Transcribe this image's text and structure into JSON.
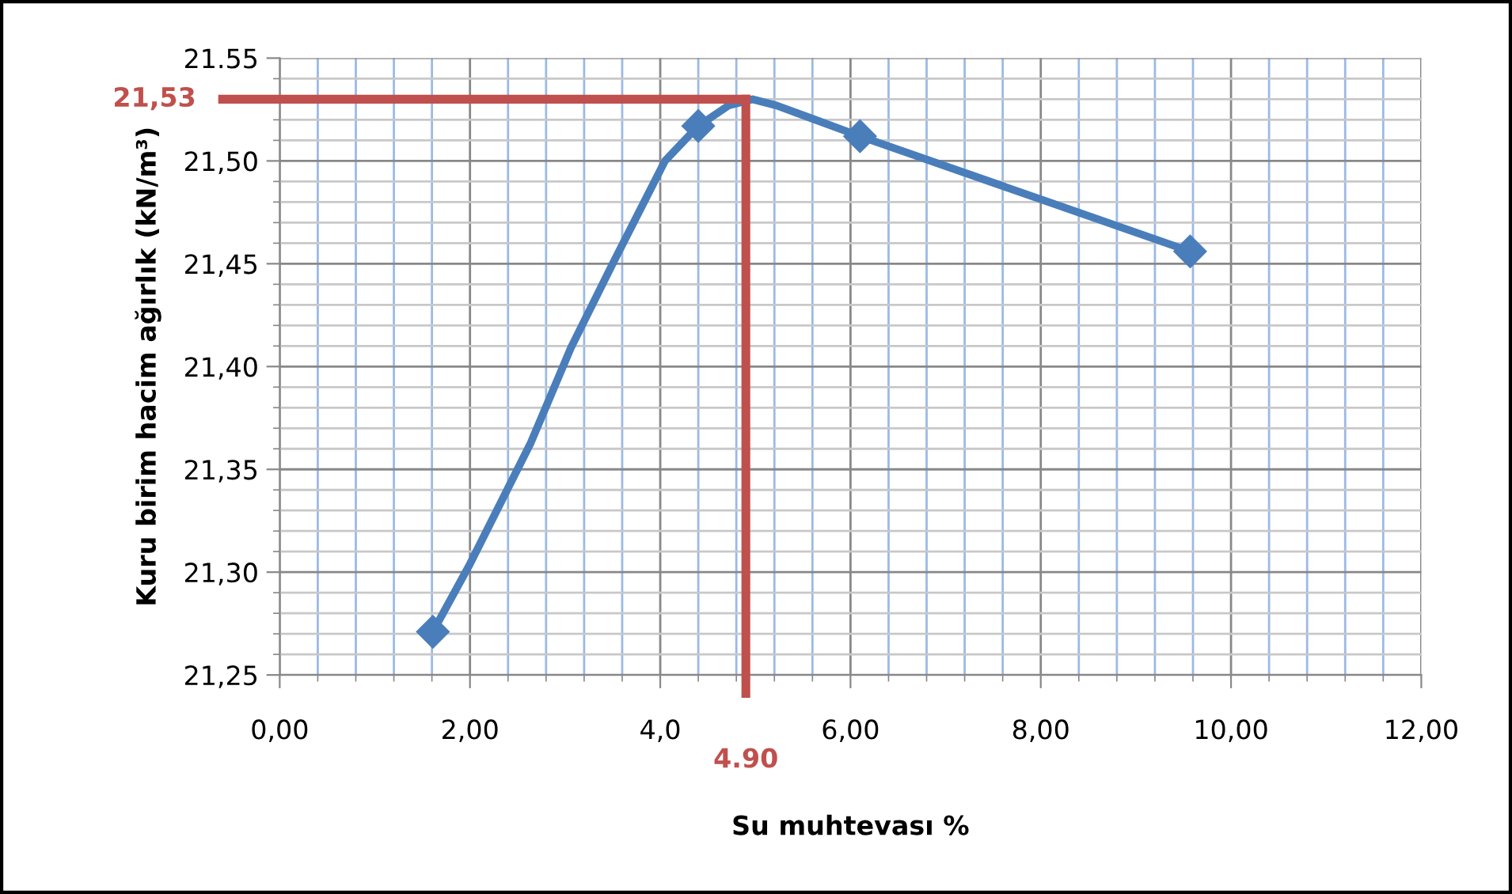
{
  "chart_data": {
    "type": "line",
    "xlabel": "Su muhtevası %",
    "ylabel": "Kuru birim hacim ağırlık (kN/m³)",
    "series": [
      {
        "color": "#4a7ebb",
        "x": [
          1.61,
          2.0,
          2.64,
          3.06,
          3.5,
          4.05,
          4.4,
          4.72,
          4.97,
          5.22,
          5.63,
          6.1,
          9.57
        ],
        "values": [
          21.271,
          21.304,
          21.363,
          21.409,
          21.45,
          21.5,
          21.517,
          21.527,
          21.53,
          21.527,
          21.52,
          21.512,
          21.456
        ],
        "marker": "none"
      },
      {
        "type": "scatter",
        "color": "#4a7ebb",
        "x": [
          1.61,
          4.4,
          6.1,
          9.57
        ],
        "values": [
          21.271,
          21.517,
          21.512,
          21.456
        ],
        "marker": "diamond"
      }
    ],
    "line_style": "solid",
    "xlim": [
      0,
      12
    ],
    "xticks": [
      {
        "value": 0,
        "label": "0,00"
      },
      {
        "value": 0.4,
        "label": null
      },
      {
        "value": 0.8,
        "label": null
      },
      {
        "value": 1.2,
        "label": null
      },
      {
        "value": 1.6,
        "label": null
      },
      {
        "value": 2,
        "label": "2,00"
      },
      {
        "value": 2.4,
        "label": null
      },
      {
        "value": 2.8,
        "label": null
      },
      {
        "value": 3.2,
        "label": null
      },
      {
        "value": 3.6,
        "label": null
      },
      {
        "value": 4,
        "label": "4,0"
      },
      {
        "value": 4.4,
        "label": null
      },
      {
        "value": 4.8,
        "label": null
      },
      {
        "value": 5.2,
        "label": null
      },
      {
        "value": 5.6,
        "label": null
      },
      {
        "value": 6,
        "label": "6,00"
      },
      {
        "value": 6.4,
        "label": null
      },
      {
        "value": 6.8,
        "label": null
      },
      {
        "value": 7.2,
        "label": null
      },
      {
        "value": 7.6,
        "label": null
      },
      {
        "value": 8,
        "label": "8,00"
      },
      {
        "value": 8.4,
        "label": null
      },
      {
        "value": 8.8,
        "label": null
      },
      {
        "value": 9.2,
        "label": null
      },
      {
        "value": 9.6,
        "label": null
      },
      {
        "value": 10,
        "label": "10,00"
      },
      {
        "value": 10.4,
        "label": null
      },
      {
        "value": 10.8,
        "label": null
      },
      {
        "value": 11.2,
        "label": null
      },
      {
        "value": 11.6,
        "label": null
      },
      {
        "value": 12,
        "label": "12,00"
      }
    ],
    "ylim": [
      21.25,
      21.55
    ],
    "yticks": [
      {
        "value": 21.25,
        "label": "21,25"
      },
      {
        "value": 21.26,
        "label": null
      },
      {
        "value": 21.27,
        "label": null
      },
      {
        "value": 21.28,
        "label": null
      },
      {
        "value": 21.29,
        "label": null
      },
      {
        "value": 21.3,
        "label": "21,30"
      },
      {
        "value": 21.31,
        "label": null
      },
      {
        "value": 21.32,
        "label": null
      },
      {
        "value": 21.33,
        "label": null
      },
      {
        "value": 21.34,
        "label": null
      },
      {
        "value": 21.35,
        "label": "21,35"
      },
      {
        "value": 21.36,
        "label": null
      },
      {
        "value": 21.37,
        "label": null
      },
      {
        "value": 21.38,
        "label": null
      },
      {
        "value": 21.39,
        "label": null
      },
      {
        "value": 21.4,
        "label": "21,40"
      },
      {
        "value": 21.41,
        "label": null
      },
      {
        "value": 21.42,
        "label": null
      },
      {
        "value": 21.43,
        "label": null
      },
      {
        "value": 21.44,
        "label": null
      },
      {
        "value": 21.45,
        "label": "21,45"
      },
      {
        "value": 21.46,
        "label": null
      },
      {
        "value": 21.47,
        "label": null
      },
      {
        "value": 21.48,
        "label": null
      },
      {
        "value": 21.49,
        "label": null
      },
      {
        "value": 21.5,
        "label": "21,50"
      },
      {
        "value": 21.51,
        "label": null
      },
      {
        "value": 21.52,
        "label": null
      },
      {
        "value": 21.53,
        "label": null
      },
      {
        "value": 21.54,
        "label": null
      },
      {
        "value": 21.55,
        "label": "21.55"
      }
    ],
    "ref_lines": [
      {
        "axis": "x",
        "value": 4.9,
        "label": "4.90",
        "color": "#c0504d"
      },
      {
        "axis": "y",
        "value": 21.53,
        "label": "21,53",
        "color": "#c0504d"
      }
    ],
    "grid": true
  }
}
